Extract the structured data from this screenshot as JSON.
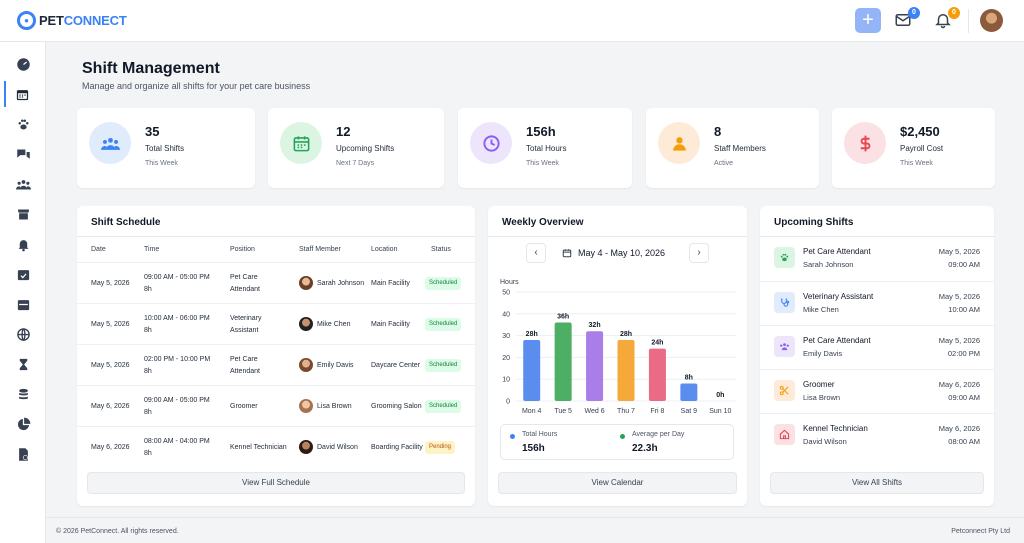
{
  "brand": {
    "pet": "PET",
    "connect": "CONNECT"
  },
  "header": {
    "mail_count": "0",
    "notif_count": "0"
  },
  "page": {
    "title": "Shift Management",
    "subtitle": "Manage and organize all shifts for your pet care business"
  },
  "stats": [
    {
      "value": "35",
      "label": "Total Shifts",
      "sub": "This Week",
      "icon": "users-icon",
      "bg": "#e0ebfb",
      "color": "#3b82f6"
    },
    {
      "value": "12",
      "label": "Upcoming Shifts",
      "sub": "Next 7 Days",
      "icon": "calendar-icon",
      "bg": "#dcf5e3",
      "color": "#22a55a"
    },
    {
      "value": "156h",
      "label": "Total Hours",
      "sub": "This Week",
      "icon": "clock-icon",
      "bg": "#ede5fb",
      "color": "#8b5cf6"
    },
    {
      "value": "8",
      "label": "Staff Members",
      "sub": "Active",
      "icon": "person-icon",
      "bg": "#fdebd7",
      "color": "#f59e0b"
    },
    {
      "value": "$2,450",
      "label": "Payroll Cost",
      "sub": "This Week",
      "icon": "dollar-icon",
      "bg": "#fbe1e4",
      "color": "#e5484d"
    }
  ],
  "schedule": {
    "title": "Shift Schedule",
    "columns": [
      "Date",
      "Time",
      "Position",
      "Staff Member",
      "Location",
      "Status"
    ],
    "rows": [
      {
        "date": "May 5, 2026",
        "time": "09:00 AM - 05:00 PM",
        "hours": "8h",
        "pos1": "Pet Care",
        "pos2": "Attendant",
        "staff": "Sarah Johnson",
        "location": "Main Facility",
        "status": "Scheduled"
      },
      {
        "date": "May 5, 2026",
        "time": "10:00 AM - 06:00 PM",
        "hours": "8h",
        "pos1": "Veterinary",
        "pos2": "Assistant",
        "staff": "Mike Chen",
        "location": "Main Facility",
        "status": "Scheduled"
      },
      {
        "date": "May 5, 2026",
        "time": "02:00 PM - 10:00 PM",
        "hours": "8h",
        "pos1": "Pet Care",
        "pos2": "Attendant",
        "staff": "Emily Davis",
        "location": "Daycare Center",
        "status": "Scheduled"
      },
      {
        "date": "May 6, 2026",
        "time": "09:00 AM - 05:00 PM",
        "hours": "8h",
        "pos1": "Groomer",
        "pos2": "",
        "staff": "Lisa Brown",
        "location": "Grooming Salon",
        "status": "Scheduled"
      },
      {
        "date": "May 6, 2026",
        "time": "08:00 AM - 04:00 PM",
        "hours": "8h",
        "pos1": "Kennel Technician",
        "pos2": "",
        "staff": "David Wilson",
        "location": "Boarding Facility",
        "status": "Pending"
      }
    ],
    "button": "View Full Schedule"
  },
  "weekly": {
    "title": "Weekly Overview",
    "range": "May 4 - May 10, 2026",
    "prev": "‹",
    "next": "›",
    "total_label": "Total Hours",
    "total_value": "156h",
    "avg_label": "Average per Day",
    "avg_value": "22.3h",
    "button": "View Calendar"
  },
  "chart_data": {
    "type": "bar",
    "ylabel": "Hours",
    "ylim": [
      0,
      50
    ],
    "yticks": [
      0,
      10,
      20,
      30,
      40,
      50
    ],
    "categories": [
      "Mon 4",
      "Tue 5",
      "Wed 6",
      "Thu 7",
      "Fri 8",
      "Sat 9",
      "Sun 10"
    ],
    "values": [
      28,
      36,
      32,
      28,
      24,
      8,
      0
    ],
    "data_labels": [
      "28h",
      "36h",
      "32h",
      "28h",
      "24h",
      "8h",
      "0h"
    ],
    "colors": [
      "#5b8def",
      "#4caf63",
      "#a97ee8",
      "#f6a93b",
      "#ea6b86",
      "#5b8def",
      "#5b8def"
    ],
    "grid": true
  },
  "upcoming": {
    "title": "Upcoming Shifts",
    "items": [
      {
        "role": "Pet Care Attendant",
        "name": "Sarah Johnson",
        "date": "May 5, 2026",
        "time": "09:00 AM",
        "icon": "paw-icon",
        "bg": "#dcf5e3",
        "color": "#22a55a"
      },
      {
        "role": "Veterinary Assistant",
        "name": "Mike Chen",
        "date": "May 5, 2026",
        "time": "10:00 AM",
        "icon": "stethoscope-icon",
        "bg": "#e0ebfb",
        "color": "#3b82f6"
      },
      {
        "role": "Pet Care Attendant",
        "name": "Emily Davis",
        "date": "May 5, 2026",
        "time": "02:00 PM",
        "icon": "users-icon",
        "bg": "#ede5fb",
        "color": "#8b5cf6"
      },
      {
        "role": "Groomer",
        "name": "Lisa Brown",
        "date": "May 6, 2026",
        "time": "09:00 AM",
        "icon": "scissors-icon",
        "bg": "#fdebd7",
        "color": "#f59e0b"
      },
      {
        "role": "Kennel Technician",
        "name": "David Wilson",
        "date": "May 6, 2026",
        "time": "08:00 AM",
        "icon": "home-icon",
        "bg": "#fbe1e4",
        "color": "#e5484d"
      }
    ],
    "button": "View All Shifts"
  },
  "footer": {
    "left": "© 2026 PetConnect. All rights reserved.",
    "right": "Petconnect Pty Ltd"
  }
}
